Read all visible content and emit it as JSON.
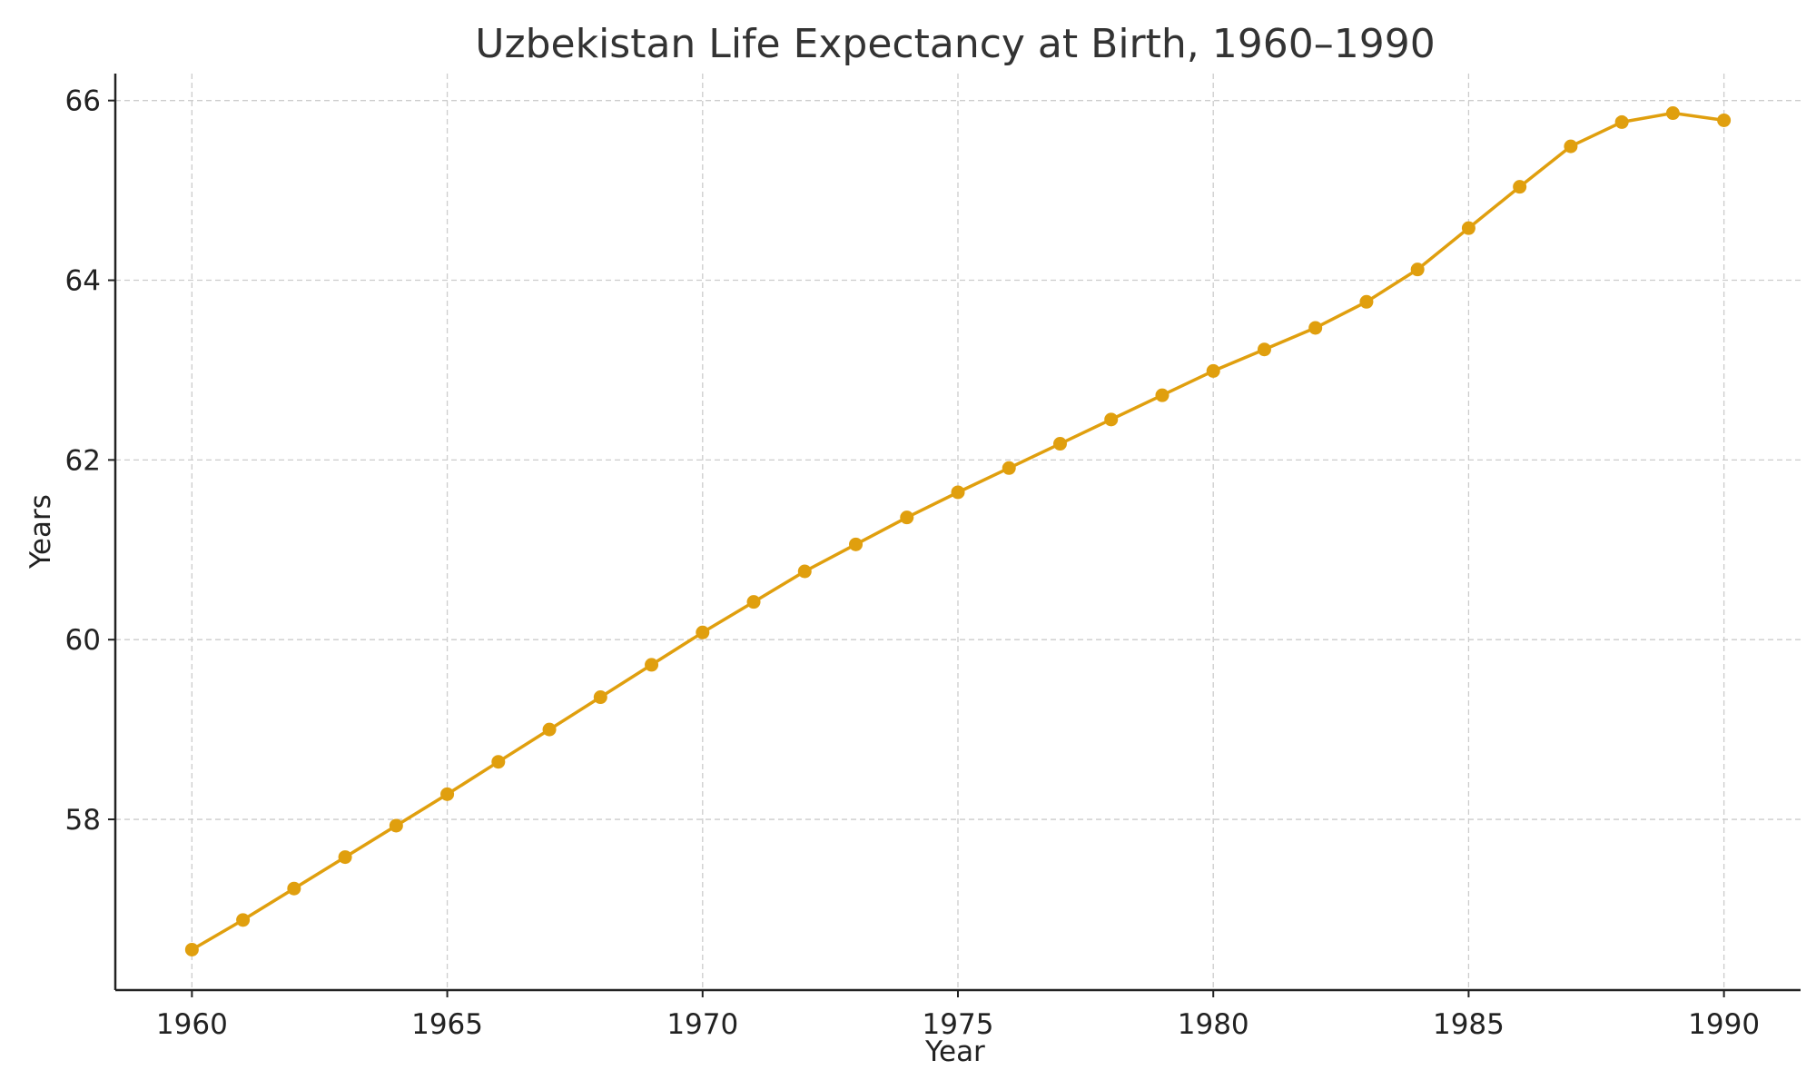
{
  "chart_data": {
    "type": "line",
    "title": "Uzbekistan Life Expectancy at Birth, 1960–1990",
    "xlabel": "Year",
    "ylabel": "Years",
    "xlim": [
      1958.5,
      1991.5
    ],
    "ylim": [
      56.1,
      66.3
    ],
    "xticks": [
      1960,
      1965,
      1970,
      1975,
      1980,
      1985,
      1990
    ],
    "yticks": [
      58,
      60,
      62,
      64,
      66
    ],
    "grid": true,
    "colors": {
      "series": "#E09F0E",
      "grid": "#cccccc",
      "axis": "#222222",
      "text": "#333333"
    },
    "series": [
      {
        "x": [
          1960,
          1961,
          1962,
          1963,
          1964,
          1965,
          1966,
          1967,
          1968,
          1969,
          1970,
          1971,
          1972,
          1973,
          1974,
          1975,
          1976,
          1977,
          1978,
          1979,
          1980,
          1981,
          1982,
          1983,
          1984,
          1985,
          1986,
          1987,
          1988,
          1989,
          1990
        ],
        "values": [
          56.55,
          56.88,
          57.23,
          57.58,
          57.93,
          58.28,
          58.64,
          59.0,
          59.36,
          59.72,
          60.08,
          60.42,
          60.76,
          61.06,
          61.36,
          61.64,
          61.91,
          62.18,
          62.45,
          62.72,
          62.99,
          63.23,
          63.47,
          63.76,
          64.12,
          64.58,
          65.04,
          65.49,
          65.76,
          65.86,
          65.78
        ]
      }
    ]
  }
}
